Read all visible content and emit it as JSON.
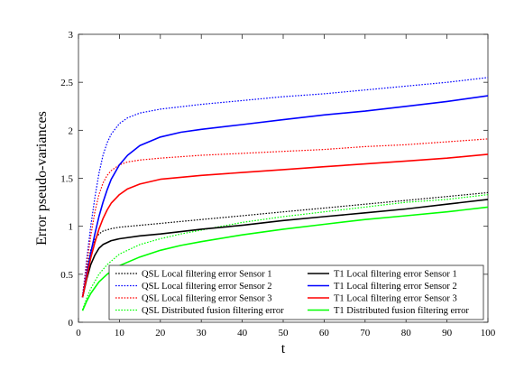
{
  "chart_data": {
    "type": "line",
    "title": "",
    "xlabel": "t",
    "ylabel": "Error pseudo-variances",
    "xlim": [
      0,
      100
    ],
    "ylim": [
      0,
      3
    ],
    "xticks": [
      0,
      10,
      20,
      30,
      40,
      50,
      60,
      70,
      80,
      90,
      100
    ],
    "yticks": [
      0,
      0.5,
      1,
      1.5,
      2,
      2.5,
      3
    ],
    "ytick_labels": [
      "0",
      "0.5",
      "1",
      "1.5",
      "2",
      "2.5",
      "3"
    ],
    "grid": false,
    "legend_position": "bottom-right",
    "series": [
      {
        "name": "QSL Local filtering error Sensor 1",
        "color": "#000000",
        "style": "dotted",
        "x": [
          1,
          2,
          3,
          4,
          5,
          6,
          8,
          10,
          15,
          20,
          30,
          40,
          50,
          60,
          70,
          80,
          90,
          100
        ],
        "y": [
          0.27,
          0.55,
          0.75,
          0.86,
          0.92,
          0.95,
          0.975,
          0.99,
          1.01,
          1.03,
          1.07,
          1.11,
          1.15,
          1.19,
          1.23,
          1.27,
          1.31,
          1.35
        ]
      },
      {
        "name": "QSL Local filtering error Sensor 2",
        "color": "#0000ff",
        "style": "dotted",
        "x": [
          1,
          2,
          3,
          4,
          5,
          6,
          7,
          8,
          10,
          12,
          15,
          20,
          30,
          40,
          50,
          60,
          70,
          80,
          90,
          100
        ],
        "y": [
          0.27,
          0.65,
          1.0,
          1.3,
          1.55,
          1.74,
          1.87,
          1.96,
          2.07,
          2.13,
          2.18,
          2.22,
          2.27,
          2.31,
          2.35,
          2.38,
          2.42,
          2.46,
          2.5,
          2.55
        ]
      },
      {
        "name": "QSL Local filtering error Sensor 3",
        "color": "#ff0000",
        "style": "dotted",
        "x": [
          1,
          2,
          3,
          4,
          5,
          6,
          7,
          8,
          10,
          12,
          15,
          20,
          30,
          40,
          50,
          60,
          70,
          80,
          90,
          100
        ],
        "y": [
          0.27,
          0.6,
          0.9,
          1.15,
          1.33,
          1.45,
          1.53,
          1.58,
          1.64,
          1.67,
          1.69,
          1.71,
          1.74,
          1.76,
          1.78,
          1.8,
          1.83,
          1.85,
          1.88,
          1.91
        ]
      },
      {
        "name": "QSL Distributed fusion filtering error",
        "color": "#00ff00",
        "style": "dotted",
        "x": [
          1,
          2,
          3,
          5,
          7,
          10,
          15,
          20,
          25,
          30,
          40,
          50,
          60,
          70,
          80,
          90,
          100
        ],
        "y": [
          0.13,
          0.25,
          0.35,
          0.5,
          0.6,
          0.71,
          0.81,
          0.87,
          0.92,
          0.96,
          1.04,
          1.1,
          1.15,
          1.2,
          1.25,
          1.28,
          1.33
        ]
      },
      {
        "name": "T1 Local filtering error Sensor 1",
        "color": "#000000",
        "style": "solid",
        "x": [
          1,
          2,
          3,
          4,
          5,
          6,
          8,
          10,
          15,
          20,
          30,
          40,
          50,
          60,
          70,
          80,
          90,
          100
        ],
        "y": [
          0.26,
          0.45,
          0.6,
          0.7,
          0.77,
          0.81,
          0.85,
          0.87,
          0.9,
          0.92,
          0.97,
          1.01,
          1.06,
          1.1,
          1.14,
          1.18,
          1.23,
          1.28
        ]
      },
      {
        "name": "T1 Local filtering error Sensor 2",
        "color": "#0000ff",
        "style": "solid",
        "x": [
          1,
          2,
          3,
          4,
          5,
          6,
          7,
          8,
          10,
          12,
          15,
          20,
          25,
          30,
          40,
          50,
          60,
          70,
          80,
          90,
          100
        ],
        "y": [
          0.26,
          0.5,
          0.72,
          0.92,
          1.1,
          1.25,
          1.38,
          1.49,
          1.64,
          1.74,
          1.84,
          1.93,
          1.98,
          2.01,
          2.06,
          2.11,
          2.16,
          2.2,
          2.25,
          2.3,
          2.36
        ]
      },
      {
        "name": "T1 Local filtering error Sensor 3",
        "color": "#ff0000",
        "style": "solid",
        "x": [
          1,
          2,
          3,
          4,
          5,
          6,
          7,
          8,
          10,
          12,
          15,
          20,
          25,
          30,
          40,
          50,
          60,
          70,
          80,
          90,
          100
        ],
        "y": [
          0.26,
          0.47,
          0.67,
          0.83,
          0.97,
          1.08,
          1.17,
          1.24,
          1.33,
          1.39,
          1.44,
          1.49,
          1.51,
          1.53,
          1.56,
          1.59,
          1.62,
          1.65,
          1.68,
          1.71,
          1.75
        ]
      },
      {
        "name": "T1 Distributed fusion filtering error",
        "color": "#00ff00",
        "style": "solid",
        "x": [
          1,
          2,
          3,
          5,
          7,
          10,
          15,
          20,
          25,
          30,
          40,
          50,
          60,
          70,
          80,
          90,
          100
        ],
        "y": [
          0.12,
          0.22,
          0.3,
          0.42,
          0.5,
          0.59,
          0.68,
          0.75,
          0.8,
          0.84,
          0.91,
          0.97,
          1.02,
          1.07,
          1.11,
          1.15,
          1.2
        ]
      }
    ]
  }
}
